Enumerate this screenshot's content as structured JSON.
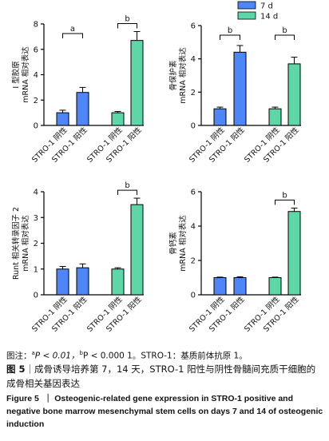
{
  "legend": {
    "items": [
      {
        "label": "7 d",
        "color": "#4f86f7"
      },
      {
        "label": "14 d",
        "color": "#5dd6a8"
      }
    ]
  },
  "chart_data": [
    {
      "type": "bar",
      "ylabel_lines": [
        "I 型胶原",
        "mRNA 相对表达"
      ],
      "ylim": [
        0,
        8
      ],
      "yticks": [
        0,
        2,
        4,
        6,
        8
      ],
      "categories": [
        "STRO-1 阴性",
        "STRO-1 阳性",
        "STRO-1 阴性",
        "STRO-1 阳性"
      ],
      "groups": [
        "7 d",
        "7 d",
        "14 d",
        "14 d"
      ],
      "values": [
        1.0,
        2.6,
        1.0,
        6.7
      ],
      "errors": [
        0.2,
        0.4,
        0.1,
        0.7
      ],
      "sig": [
        {
          "from": 0,
          "to": 1,
          "label": "a"
        },
        {
          "from": 2,
          "to": 3,
          "label": "b"
        }
      ]
    },
    {
      "type": "bar",
      "ylabel_lines": [
        "骨保护素",
        "mRNA 相对表达"
      ],
      "ylim": [
        0,
        6
      ],
      "yticks": [
        0,
        2,
        4,
        6
      ],
      "categories": [
        "STRO-1 阴性",
        "STRO-1 阳性",
        "STRO-1 阴性",
        "STRO-1 阳性"
      ],
      "groups": [
        "7 d",
        "7 d",
        "14 d",
        "14 d"
      ],
      "values": [
        1.0,
        4.4,
        1.0,
        3.7
      ],
      "errors": [
        0.1,
        0.4,
        0.1,
        0.4
      ],
      "sig": [
        {
          "from": 0,
          "to": 1,
          "label": "b"
        },
        {
          "from": 2,
          "to": 3,
          "label": "b"
        }
      ]
    },
    {
      "type": "bar",
      "ylabel_lines": [
        "Runt 相关转录因子 2",
        "mRNA 相对表达"
      ],
      "ylim": [
        0,
        4
      ],
      "yticks": [
        0,
        1,
        2,
        3,
        4
      ],
      "categories": [
        "STRO-1 阴性",
        "STRO-1 阳性",
        "STRO-1 阴性",
        "STRO-1 阳性"
      ],
      "groups": [
        "7 d",
        "7 d",
        "14 d",
        "14 d"
      ],
      "values": [
        1.0,
        1.05,
        1.0,
        3.5
      ],
      "errors": [
        0.1,
        0.15,
        0.05,
        0.25
      ],
      "sig": [
        {
          "from": 2,
          "to": 3,
          "label": "b"
        }
      ]
    },
    {
      "type": "bar",
      "ylabel_lines": [
        "骨钙素",
        "mRNA 相对表达"
      ],
      "ylim": [
        0,
        6
      ],
      "yticks": [
        0,
        2,
        4,
        6
      ],
      "categories": [
        "STRO-1 阴性",
        "STRO-1 阳性",
        "STRO-1 阴性",
        "STRO-1 阳性"
      ],
      "groups": [
        "7 d",
        "7 d",
        "14 d",
        "14 d"
      ],
      "values": [
        1.0,
        1.0,
        1.0,
        4.85
      ],
      "errors": [
        0.03,
        0.05,
        0.03,
        0.2
      ],
      "sig": [
        {
          "from": 2,
          "to": 3,
          "label": "b"
        }
      ]
    }
  ],
  "caption": {
    "note_prefix": "图注：",
    "note_a_sup": "a",
    "note_a_text": "P < 0.01，",
    "note_b_sup": "b",
    "note_b_text": "P < 0.000 1。STRO-1：基质前体抗原 1。",
    "cn_fig": "图 5",
    "cn_text": "｜成骨诱导培养第 7，14 天，STRO-1 阳性与阴性骨髓间充质干细胞的成骨相关基因表达",
    "en_fig": "Figure 5",
    "en_text": "｜ Osteogenic-related gene expression in STRO-1 positive and negative bone marrow mesenchymal stem cells on days 7 and 14 of osteogenic induction"
  }
}
